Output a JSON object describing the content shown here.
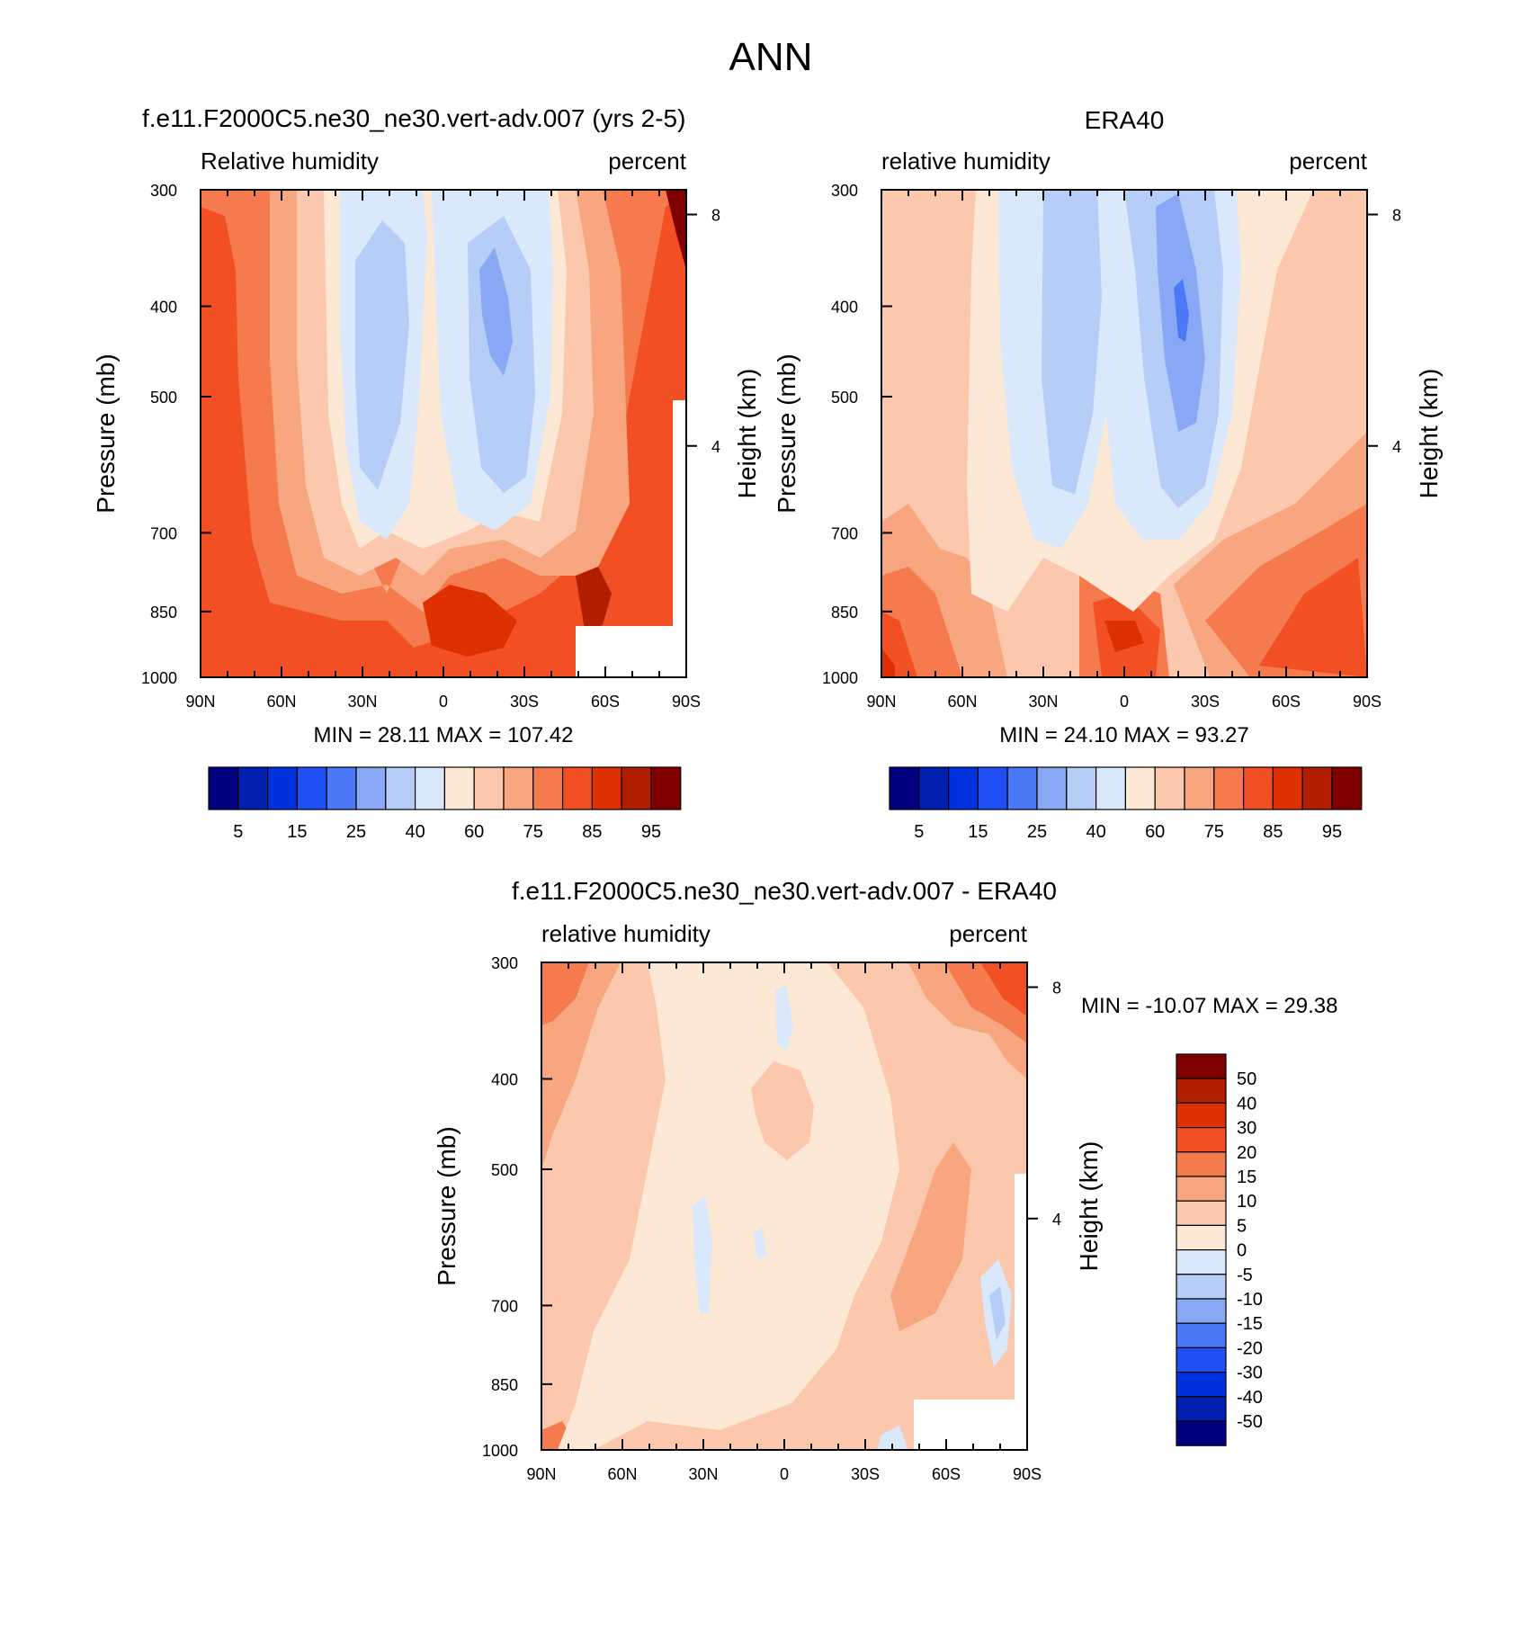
{
  "page": {
    "title": "ANN"
  },
  "colors": {
    "abs_scale": [
      "#000080",
      "#0020b0",
      "#0033dd",
      "#1f4ff5",
      "#4a78f7",
      "#88a8f5",
      "#b6cdf8",
      "#d9e8fa",
      "#fde8d6",
      "#fbc7ad",
      "#f8a67f",
      "#f57a4e",
      "#f25024",
      "#de3000",
      "#b21e00",
      "#800000"
    ],
    "diff_scale": [
      "#000080",
      "#0020b0",
      "#0033dd",
      "#1f4ff5",
      "#4a78f7",
      "#88a8f5",
      "#b6cdf8",
      "#d9e8fa",
      "#fde8d6",
      "#fbc7ad",
      "#f8a67f",
      "#f57a4e",
      "#f25024",
      "#de3000",
      "#b21e00",
      "#800000"
    ]
  },
  "chart_data": [
    {
      "id": "model",
      "type": "heatmap",
      "title": "f.e11.F2000C5.ne30_ne30.vert-adv.007 (yrs 2-5)",
      "left_label": "Relative humidity",
      "right_label": "percent",
      "ylabel": "Pressure (mb)",
      "y2label": "Height (km)",
      "x_ticks": [
        "90N",
        "60N",
        "30N",
        "0",
        "30S",
        "60S",
        "90S"
      ],
      "x_values": [
        90,
        60,
        30,
        0,
        -30,
        -60,
        -90
      ],
      "y_ticks": [
        "300",
        "400",
        "500",
        "700",
        "850",
        "1000"
      ],
      "y_values": [
        300,
        400,
        500,
        700,
        850,
        1000
      ],
      "y2_ticks": [
        "8",
        "4"
      ],
      "y2_values": [
        8,
        4
      ],
      "ylim": [
        300,
        1000
      ],
      "xlim": [
        90,
        -90
      ],
      "stats": "MIN =  28.11  MAX = 107.42",
      "min": 28.11,
      "max": 107.42,
      "levels": [
        5,
        10,
        15,
        20,
        25,
        30,
        40,
        50,
        60,
        70,
        75,
        80,
        85,
        90,
        95
      ],
      "colorbar_labels": [
        "5",
        "15",
        "25",
        "40",
        "60",
        "75",
        "85",
        "95"
      ],
      "missing_region": {
        "lat": [
          -50,
          -90
        ],
        "pressure": [
          925,
          1000
        ]
      }
    },
    {
      "id": "obs",
      "type": "heatmap",
      "title": "ERA40",
      "left_label": "relative humidity",
      "right_label": "percent",
      "ylabel": "Pressure (mb)",
      "y2label": "Height (km)",
      "x_ticks": [
        "90N",
        "60N",
        "30N",
        "0",
        "30S",
        "60S",
        "90S"
      ],
      "x_values": [
        90,
        60,
        30,
        0,
        -30,
        -60,
        -90
      ],
      "y_ticks": [
        "300",
        "400",
        "500",
        "700",
        "850",
        "1000"
      ],
      "y_values": [
        300,
        400,
        500,
        700,
        850,
        1000
      ],
      "y2_ticks": [
        "8",
        "4"
      ],
      "y2_values": [
        8,
        4
      ],
      "ylim": [
        300,
        1000
      ],
      "xlim": [
        90,
        -90
      ],
      "stats": "MIN =  24.10  MAX =  93.27",
      "min": 24.1,
      "max": 93.27,
      "levels": [
        5,
        10,
        15,
        20,
        25,
        30,
        40,
        50,
        60,
        70,
        75,
        80,
        85,
        90,
        95
      ],
      "colorbar_labels": [
        "5",
        "15",
        "25",
        "40",
        "60",
        "75",
        "85",
        "95"
      ]
    },
    {
      "id": "diff",
      "type": "heatmap",
      "title": "f.e11.F2000C5.ne30_ne30.vert-adv.007 - ERA40",
      "left_label": "relative humidity",
      "right_label": "percent",
      "ylabel": "Pressure (mb)",
      "y2label": "Height (km)",
      "x_ticks": [
        "90N",
        "60N",
        "30N",
        "0",
        "30S",
        "60S",
        "90S"
      ],
      "x_values": [
        90,
        60,
        30,
        0,
        -30,
        -60,
        -90
      ],
      "y_ticks": [
        "300",
        "400",
        "500",
        "700",
        "850",
        "1000"
      ],
      "y_values": [
        300,
        400,
        500,
        700,
        850,
        1000
      ],
      "y2_ticks": [
        "8",
        "4"
      ],
      "y2_values": [
        8,
        4
      ],
      "ylim": [
        300,
        1000
      ],
      "xlim": [
        90,
        -90
      ],
      "stats": "MIN = -10.07  MAX =  29.38",
      "min": -10.07,
      "max": 29.38,
      "levels": [
        -50,
        -40,
        -30,
        -20,
        -15,
        -10,
        -5,
        0,
        5,
        10,
        15,
        20,
        30,
        40,
        50
      ],
      "colorbar_labels": [
        "50",
        "40",
        "30",
        "20",
        "15",
        "10",
        "5",
        "0",
        "-5",
        "-10",
        "-15",
        "-20",
        "-30",
        "-40",
        "-50"
      ],
      "missing_region": {
        "lat": [
          -50,
          -90
        ],
        "pressure": [
          925,
          1000
        ]
      }
    }
  ]
}
